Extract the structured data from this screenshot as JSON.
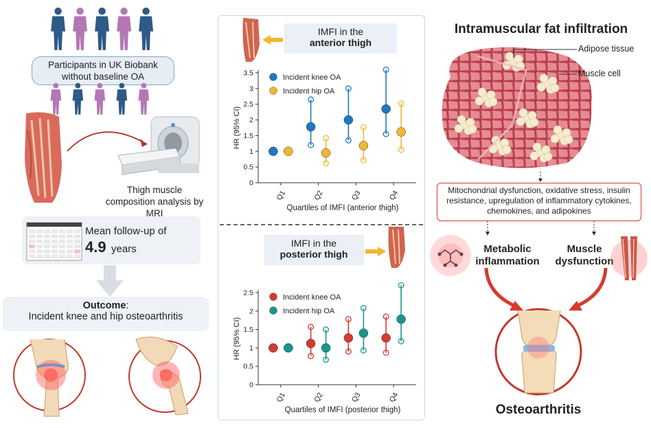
{
  "left": {
    "participants_label": "Participants in UK Biobank without baseline OA",
    "mri_caption": "Thigh muscle composition analysis by MRI",
    "followup_prefix": "Mean follow-up of",
    "followup_value": "4.9",
    "followup_unit": "years",
    "outcome_bold": "Outcome",
    "outcome_colon": ":",
    "outcome_text": "Incident knee and hip osteoarthritis",
    "colors": {
      "person_blue": "#2d5a86",
      "person_pink": "#b477b6"
    }
  },
  "middle": {
    "anterior_title_line1": "IMFI in the",
    "anterior_title_line2": "anterior thigh",
    "posterior_title_line1": "IMFI in the",
    "posterior_title_line2": "posterior thigh"
  },
  "right": {
    "title": "Intramuscular fat infiltration",
    "label_adipose": "Adipose tissue",
    "label_muscle": "Muscle cell",
    "mechanisms": "Mitochondrial dysfunction, oxidative stress, insulin resistance, upregulation of inflammatory cytokines, chemokines, and adipokines",
    "metabolic_line1": "Metabolic",
    "metabolic_line2": "inflammation",
    "muscle_line1": "Muscle",
    "muscle_line2": "dysfunction",
    "outcome_title": "Osteoarthritis",
    "colors": {
      "accent_red": "#d63a2f",
      "muscle_pink": "#e07a84",
      "fat_cream": "#f6ecd2"
    }
  },
  "chart_data": [
    {
      "type": "scatter",
      "title": "",
      "xlabel": "Quartiles of IMFI (anterior thigh)",
      "ylabel": "HR (95% CI)",
      "categories": [
        "Q1",
        "Q2",
        "Q3",
        "Q4"
      ],
      "ylim": [
        0,
        3.5
      ],
      "yticks": [
        "0",
        "0.5",
        "1",
        "1.5",
        "2",
        "2.5",
        "3",
        "3.5"
      ],
      "legend_position": "top-left",
      "series": [
        {
          "name": "Incident knee OA",
          "color": "#1f77c0",
          "values": [
            1.0,
            1.78,
            2.0,
            2.35
          ],
          "lower": [
            1.0,
            1.2,
            1.35,
            1.55
          ],
          "upper": [
            1.0,
            2.65,
            3.0,
            3.6
          ]
        },
        {
          "name": "Incident hip OA",
          "color": "#f2b731",
          "values": [
            1.0,
            0.95,
            1.18,
            1.62
          ],
          "lower": [
            1.0,
            0.62,
            0.72,
            1.05
          ],
          "upper": [
            1.0,
            1.42,
            1.77,
            2.52
          ]
        }
      ]
    },
    {
      "type": "scatter",
      "title": "",
      "xlabel": "Quartiles of IMFI (posterior thigh)",
      "ylabel": "HR (95% CI)",
      "categories": [
        "Q1",
        "Q2",
        "Q3",
        "Q4"
      ],
      "ylim": [
        0,
        2.5
      ],
      "yticks": [
        "0",
        "0.5",
        "1",
        "1.5",
        "2",
        "2.5"
      ],
      "legend_position": "top-left",
      "series": [
        {
          "name": "Incident knee OA",
          "color": "#d33a31",
          "values": [
            1.0,
            1.12,
            1.27,
            1.27
          ],
          "lower": [
            1.0,
            0.78,
            0.9,
            0.87
          ],
          "upper": [
            1.0,
            1.57,
            1.78,
            1.85
          ]
        },
        {
          "name": "Incident hip OA",
          "color": "#18968c",
          "values": [
            1.0,
            1.0,
            1.4,
            1.78
          ],
          "lower": [
            1.0,
            0.68,
            0.93,
            1.18
          ],
          "upper": [
            1.0,
            1.5,
            2.08,
            2.7
          ]
        }
      ]
    }
  ]
}
